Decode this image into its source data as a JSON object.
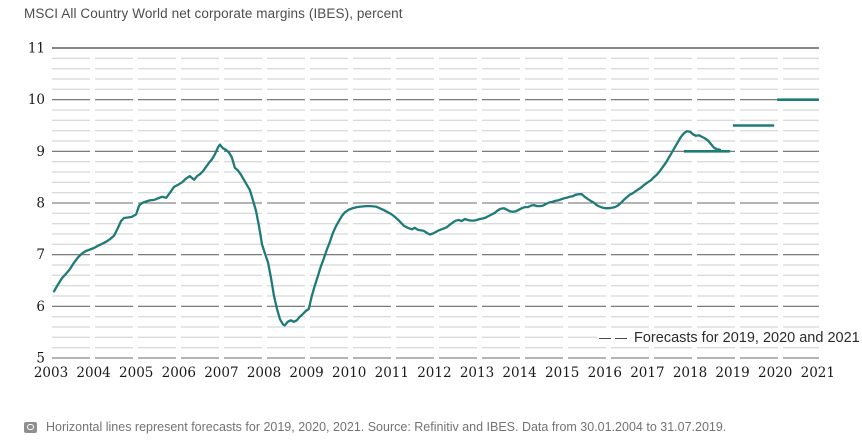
{
  "header": {
    "title": "MSCI All Country World net corporate margins (IBES), percent"
  },
  "legend": {
    "marker": "dashed-line-sample",
    "label": "Forecasts for 2019, 2020 and 2021"
  },
  "footer": {
    "icon": "camera-icon",
    "text": "Horizontal lines represent forecasts for 2019, 2020, 2021. Source: Refinitiv and IBES. Data from 30.01.2004 to 31.07.2019."
  },
  "chart_data": {
    "type": "line",
    "title": "MSCI All Country World net corporate margins (IBES), percent",
    "xlabel": "",
    "ylabel": "percent",
    "ylim": [
      5,
      11
    ],
    "y_major_step": 1,
    "y_minor_step": 0.2,
    "grid": "horizontal dashed, solid line at 11",
    "legend_position": "inside bottom-right",
    "y_ticks": [
      "11",
      "10",
      "9",
      "8",
      "7",
      "6",
      "5"
    ],
    "x_tick_labels": [
      "2003",
      "2004",
      "2005",
      "2006",
      "2007",
      "2008",
      "2009",
      "2010",
      "2011",
      "2012",
      "2013",
      "2014",
      "2015",
      "2016",
      "2017",
      "2018",
      "2019",
      "2020",
      "2021"
    ],
    "colors": {
      "line": "#1e7b78",
      "grid_major": "#6a6a6a",
      "grid_minor": "#cdcdcd",
      "grid_top": "#3f3f3f",
      "tick_text": "#1a1a1a"
    },
    "series": [
      {
        "name": "MSCI ACWI net corporate margin (percent)",
        "points": [
          [
            2004.08,
            6.29
          ],
          [
            2004.17,
            6.42
          ],
          [
            2004.27,
            6.55
          ],
          [
            2004.36,
            6.63
          ],
          [
            2004.45,
            6.72
          ],
          [
            2004.55,
            6.85
          ],
          [
            2004.64,
            6.95
          ],
          [
            2004.73,
            7.02
          ],
          [
            2004.82,
            7.07
          ],
          [
            2004.92,
            7.1
          ],
          [
            2005.01,
            7.13
          ],
          [
            2005.1,
            7.17
          ],
          [
            2005.2,
            7.21
          ],
          [
            2005.29,
            7.25
          ],
          [
            2005.38,
            7.3
          ],
          [
            2005.48,
            7.37
          ],
          [
            2005.57,
            7.52
          ],
          [
            2005.64,
            7.65
          ],
          [
            2005.71,
            7.71
          ],
          [
            2005.8,
            7.72
          ],
          [
            2005.89,
            7.73
          ],
          [
            2005.99,
            7.78
          ],
          [
            2006.06,
            7.95
          ],
          [
            2006.13,
            8.0
          ],
          [
            2006.22,
            8.03
          ],
          [
            2006.31,
            8.05
          ],
          [
            2006.41,
            8.06
          ],
          [
            2006.5,
            8.09
          ],
          [
            2006.59,
            8.12
          ],
          [
            2006.69,
            8.1
          ],
          [
            2006.78,
            8.2
          ],
          [
            2006.87,
            8.31
          ],
          [
            2006.96,
            8.35
          ],
          [
            2007.06,
            8.4
          ],
          [
            2007.15,
            8.47
          ],
          [
            2007.24,
            8.52
          ],
          [
            2007.34,
            8.45
          ],
          [
            2007.41,
            8.52
          ],
          [
            2007.48,
            8.56
          ],
          [
            2007.55,
            8.62
          ],
          [
            2007.62,
            8.7
          ],
          [
            2007.69,
            8.78
          ],
          [
            2007.76,
            8.85
          ],
          [
            2007.83,
            8.95
          ],
          [
            2007.9,
            9.08
          ],
          [
            2007.94,
            9.13
          ],
          [
            2008.01,
            9.06
          ],
          [
            2008.08,
            9.03
          ],
          [
            2008.15,
            8.98
          ],
          [
            2008.22,
            8.88
          ],
          [
            2008.29,
            8.68
          ],
          [
            2008.36,
            8.63
          ],
          [
            2008.43,
            8.55
          ],
          [
            2008.5,
            8.45
          ],
          [
            2008.57,
            8.35
          ],
          [
            2008.64,
            8.25
          ],
          [
            2008.71,
            8.05
          ],
          [
            2008.78,
            7.85
          ],
          [
            2008.85,
            7.55
          ],
          [
            2008.92,
            7.2
          ],
          [
            2008.99,
            7.02
          ],
          [
            2009.06,
            6.85
          ],
          [
            2009.13,
            6.55
          ],
          [
            2009.2,
            6.2
          ],
          [
            2009.27,
            5.95
          ],
          [
            2009.34,
            5.75
          ],
          [
            2009.41,
            5.65
          ],
          [
            2009.45,
            5.63
          ],
          [
            2009.52,
            5.7
          ],
          [
            2009.59,
            5.73
          ],
          [
            2009.66,
            5.7
          ],
          [
            2009.73,
            5.73
          ],
          [
            2009.8,
            5.8
          ],
          [
            2009.87,
            5.85
          ],
          [
            2009.94,
            5.91
          ],
          [
            2010.01,
            5.95
          ],
          [
            2010.08,
            6.2
          ],
          [
            2010.15,
            6.4
          ],
          [
            2010.22,
            6.58
          ],
          [
            2010.29,
            6.77
          ],
          [
            2010.36,
            6.93
          ],
          [
            2010.43,
            7.1
          ],
          [
            2010.5,
            7.25
          ],
          [
            2010.57,
            7.42
          ],
          [
            2010.64,
            7.55
          ],
          [
            2010.71,
            7.65
          ],
          [
            2010.78,
            7.75
          ],
          [
            2010.85,
            7.82
          ],
          [
            2010.94,
            7.87
          ],
          [
            2011.03,
            7.9
          ],
          [
            2011.13,
            7.92
          ],
          [
            2011.22,
            7.93
          ],
          [
            2011.34,
            7.94
          ],
          [
            2011.45,
            7.94
          ],
          [
            2011.57,
            7.93
          ],
          [
            2011.66,
            7.9
          ],
          [
            2011.76,
            7.86
          ],
          [
            2011.85,
            7.82
          ],
          [
            2011.94,
            7.78
          ],
          [
            2012.03,
            7.72
          ],
          [
            2012.13,
            7.64
          ],
          [
            2012.22,
            7.56
          ],
          [
            2012.31,
            7.52
          ],
          [
            2012.41,
            7.49
          ],
          [
            2012.48,
            7.52
          ],
          [
            2012.55,
            7.48
          ],
          [
            2012.62,
            7.47
          ],
          [
            2012.69,
            7.46
          ],
          [
            2012.76,
            7.42
          ],
          [
            2012.83,
            7.39
          ],
          [
            2012.9,
            7.41
          ],
          [
            2012.97,
            7.44
          ],
          [
            2013.03,
            7.47
          ],
          [
            2013.13,
            7.5
          ],
          [
            2013.22,
            7.53
          ],
          [
            2013.29,
            7.58
          ],
          [
            2013.36,
            7.62
          ],
          [
            2013.43,
            7.66
          ],
          [
            2013.5,
            7.67
          ],
          [
            2013.57,
            7.65
          ],
          [
            2013.64,
            7.69
          ],
          [
            2013.71,
            7.67
          ],
          [
            2013.78,
            7.66
          ],
          [
            2013.85,
            7.66
          ],
          [
            2013.92,
            7.67
          ],
          [
            2013.99,
            7.69
          ],
          [
            2014.06,
            7.7
          ],
          [
            2014.13,
            7.72
          ],
          [
            2014.2,
            7.75
          ],
          [
            2014.27,
            7.78
          ],
          [
            2014.34,
            7.81
          ],
          [
            2014.41,
            7.86
          ],
          [
            2014.48,
            7.89
          ],
          [
            2014.55,
            7.9
          ],
          [
            2014.62,
            7.87
          ],
          [
            2014.69,
            7.84
          ],
          [
            2014.76,
            7.83
          ],
          [
            2014.83,
            7.84
          ],
          [
            2014.9,
            7.87
          ],
          [
            2014.97,
            7.9
          ],
          [
            2015.04,
            7.92
          ],
          [
            2015.11,
            7.92
          ],
          [
            2015.18,
            7.95
          ],
          [
            2015.25,
            7.96
          ],
          [
            2015.32,
            7.94
          ],
          [
            2015.39,
            7.94
          ],
          [
            2015.46,
            7.95
          ],
          [
            2015.53,
            7.98
          ],
          [
            2015.6,
            8.01
          ],
          [
            2015.67,
            8.02
          ],
          [
            2015.74,
            8.04
          ],
          [
            2015.81,
            8.05
          ],
          [
            2015.88,
            8.07
          ],
          [
            2015.95,
            8.09
          ],
          [
            2016.01,
            8.1
          ],
          [
            2016.08,
            8.12
          ],
          [
            2016.15,
            8.13
          ],
          [
            2016.22,
            8.16
          ],
          [
            2016.29,
            8.17
          ],
          [
            2016.36,
            8.17
          ],
          [
            2016.43,
            8.12
          ],
          [
            2016.5,
            8.08
          ],
          [
            2016.57,
            8.04
          ],
          [
            2016.64,
            8.01
          ],
          [
            2016.71,
            7.96
          ],
          [
            2016.78,
            7.93
          ],
          [
            2016.85,
            7.91
          ],
          [
            2016.92,
            7.9
          ],
          [
            2016.99,
            7.9
          ],
          [
            2017.06,
            7.91
          ],
          [
            2017.13,
            7.92
          ],
          [
            2017.2,
            7.95
          ],
          [
            2017.27,
            8.0
          ],
          [
            2017.34,
            8.06
          ],
          [
            2017.41,
            8.11
          ],
          [
            2017.48,
            8.16
          ],
          [
            2017.55,
            8.19
          ],
          [
            2017.62,
            8.23
          ],
          [
            2017.69,
            8.27
          ],
          [
            2017.76,
            8.31
          ],
          [
            2017.83,
            8.36
          ],
          [
            2017.9,
            8.4
          ],
          [
            2017.97,
            8.44
          ],
          [
            2018.04,
            8.5
          ],
          [
            2018.11,
            8.55
          ],
          [
            2018.18,
            8.62
          ],
          [
            2018.25,
            8.7
          ],
          [
            2018.32,
            8.78
          ],
          [
            2018.39,
            8.88
          ],
          [
            2018.46,
            8.98
          ],
          [
            2018.53,
            9.08
          ],
          [
            2018.6,
            9.18
          ],
          [
            2018.67,
            9.28
          ],
          [
            2018.74,
            9.35
          ],
          [
            2018.81,
            9.39
          ],
          [
            2018.88,
            9.38
          ],
          [
            2018.95,
            9.33
          ],
          [
            2019.02,
            9.3
          ],
          [
            2019.09,
            9.31
          ],
          [
            2019.16,
            9.28
          ],
          [
            2019.23,
            9.25
          ],
          [
            2019.3,
            9.21
          ],
          [
            2019.37,
            9.14
          ],
          [
            2019.44,
            9.07
          ],
          [
            2019.51,
            9.04
          ],
          [
            2019.58,
            9.03
          ]
        ]
      }
    ],
    "forecasts": [
      {
        "label": "2019",
        "value": 9.0,
        "start": 2018.74,
        "end": 2019.81
      },
      {
        "label": "2020",
        "value": 9.5,
        "start": 2019.88,
        "end": 2020.84
      },
      {
        "label": "2021",
        "value": 10.0,
        "start": 2020.91,
        "end": 2021.88
      }
    ]
  }
}
